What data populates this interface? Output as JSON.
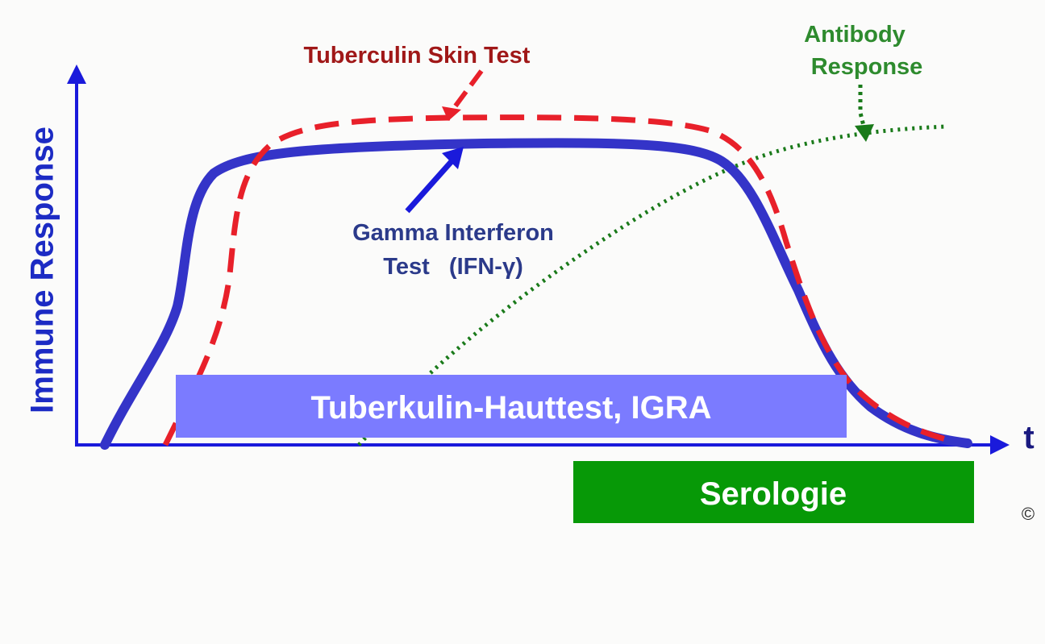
{
  "axes": {
    "y_label": "Immune Response",
    "x_label": "t"
  },
  "annotations": {
    "tuberculin": "Tuberculin Skin Test",
    "antibody": [
      "Antibody",
      "Response"
    ],
    "gamma": [
      "Gamma Interferon",
      "Test   (IFN-γ)"
    ]
  },
  "boxes": {
    "igra": "Tuberkulin-Hauttest, IGRA",
    "serology": "Serologie"
  },
  "copyright": "©"
}
